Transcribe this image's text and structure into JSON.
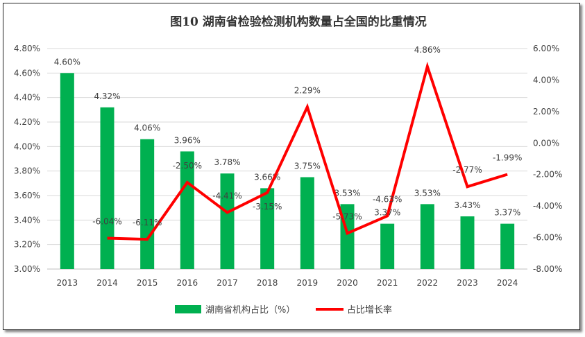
{
  "chart_data": {
    "type": "bar+line",
    "title": "图10  湖南省检验检测机构数量占全国的比重情况",
    "categories": [
      "2013",
      "2014",
      "2015",
      "2016",
      "2017",
      "2018",
      "2019",
      "2020",
      "2021",
      "2022",
      "2023",
      "2024"
    ],
    "series": [
      {
        "name": "湖南省机构占比（%）",
        "type": "bar",
        "axis": "left",
        "color": "#00b050",
        "values": [
          4.6,
          4.32,
          4.06,
          3.96,
          3.78,
          3.66,
          3.75,
          3.53,
          3.37,
          3.53,
          3.43,
          3.37
        ]
      },
      {
        "name": "占比增长率",
        "type": "line",
        "axis": "right",
        "color": "#ff0000",
        "values": [
          null,
          -6.04,
          -6.11,
          -2.5,
          -4.41,
          -3.15,
          2.29,
          -5.73,
          -4.63,
          4.86,
          -2.77,
          -1.99
        ]
      }
    ],
    "left_axis": {
      "ylim": [
        3.0,
        4.8
      ],
      "step": 0.2,
      "ticks": [
        "3.00%",
        "3.20%",
        "3.40%",
        "3.60%",
        "3.80%",
        "4.00%",
        "4.20%",
        "4.40%",
        "4.60%",
        "4.80%"
      ]
    },
    "right_axis": {
      "ylim": [
        -8,
        6
      ],
      "step": 2,
      "ticks": [
        "-8.00%",
        "-6.00%",
        "-4.00%",
        "-2.00%",
        "0.00%",
        "2.00%",
        "4.00%",
        "6.00%"
      ]
    },
    "grid": true,
    "legend": "bottom"
  }
}
